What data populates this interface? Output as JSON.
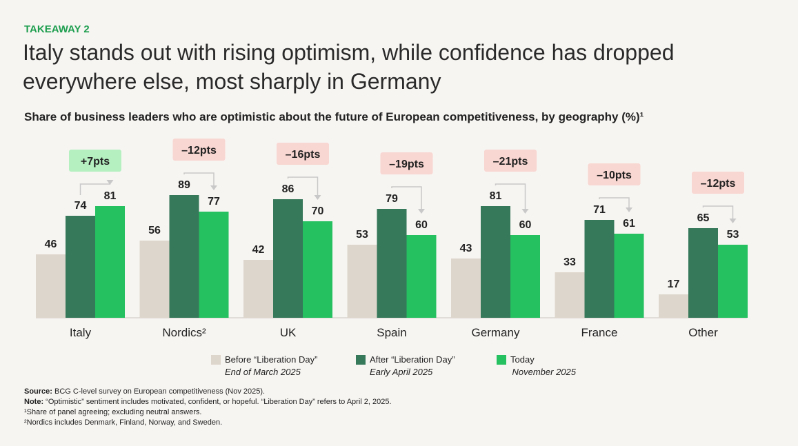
{
  "chart_data": {
    "type": "bar",
    "kicker": "TAKEAWAY 2",
    "title": [
      "Italy stands out with rising optimism, while confidence has dropped",
      "everywhere else, most sharply in Germany"
    ],
    "subtitle": "Share of business leaders who are optimistic about the future of European competitiveness, by geography (%)¹",
    "categories": [
      "Italy",
      "Nordics²",
      "UK",
      "Spain",
      "Germany",
      "France",
      "Other"
    ],
    "series": [
      {
        "name": "Before “Liberation Day”",
        "period": "End of March 2025",
        "color": "#ddd6cc",
        "values": [
          46,
          56,
          42,
          53,
          43,
          33,
          17
        ]
      },
      {
        "name": "After “Liberation Day”",
        "period": "Early April 2025",
        "color": "#36785a",
        "values": [
          74,
          89,
          86,
          79,
          81,
          71,
          65
        ]
      },
      {
        "name": "Today",
        "period": "November 2025",
        "color": "#25c060",
        "values": [
          81,
          77,
          70,
          60,
          60,
          61,
          53
        ]
      }
    ],
    "changes": {
      "values": [
        7,
        -12,
        -16,
        -19,
        -21,
        -10,
        -12
      ],
      "value_labels": [
        "+7pts",
        "–12pts",
        "–16pts",
        "–19pts",
        "–21pts",
        "–10pts",
        "–12pts"
      ],
      "positive_color": "#b5f0c1",
      "negative_color": "#f8d6d1"
    },
    "footnotes": [
      {
        "label": "Source:",
        "text": " BCG C-level survey on European competitiveness (Nov 2025)."
      },
      {
        "label": "Note:",
        "text": " “Optimistic” sentiment includes motivated, confident, or hopeful. “Liberation Day” refers to April 2, 2025."
      },
      {
        "text": "¹Share of panel agreeing; excluding neutral answers."
      },
      {
        "text": "²Nordics includes Denmark, Finland, Norway, and Sweden."
      }
    ]
  }
}
